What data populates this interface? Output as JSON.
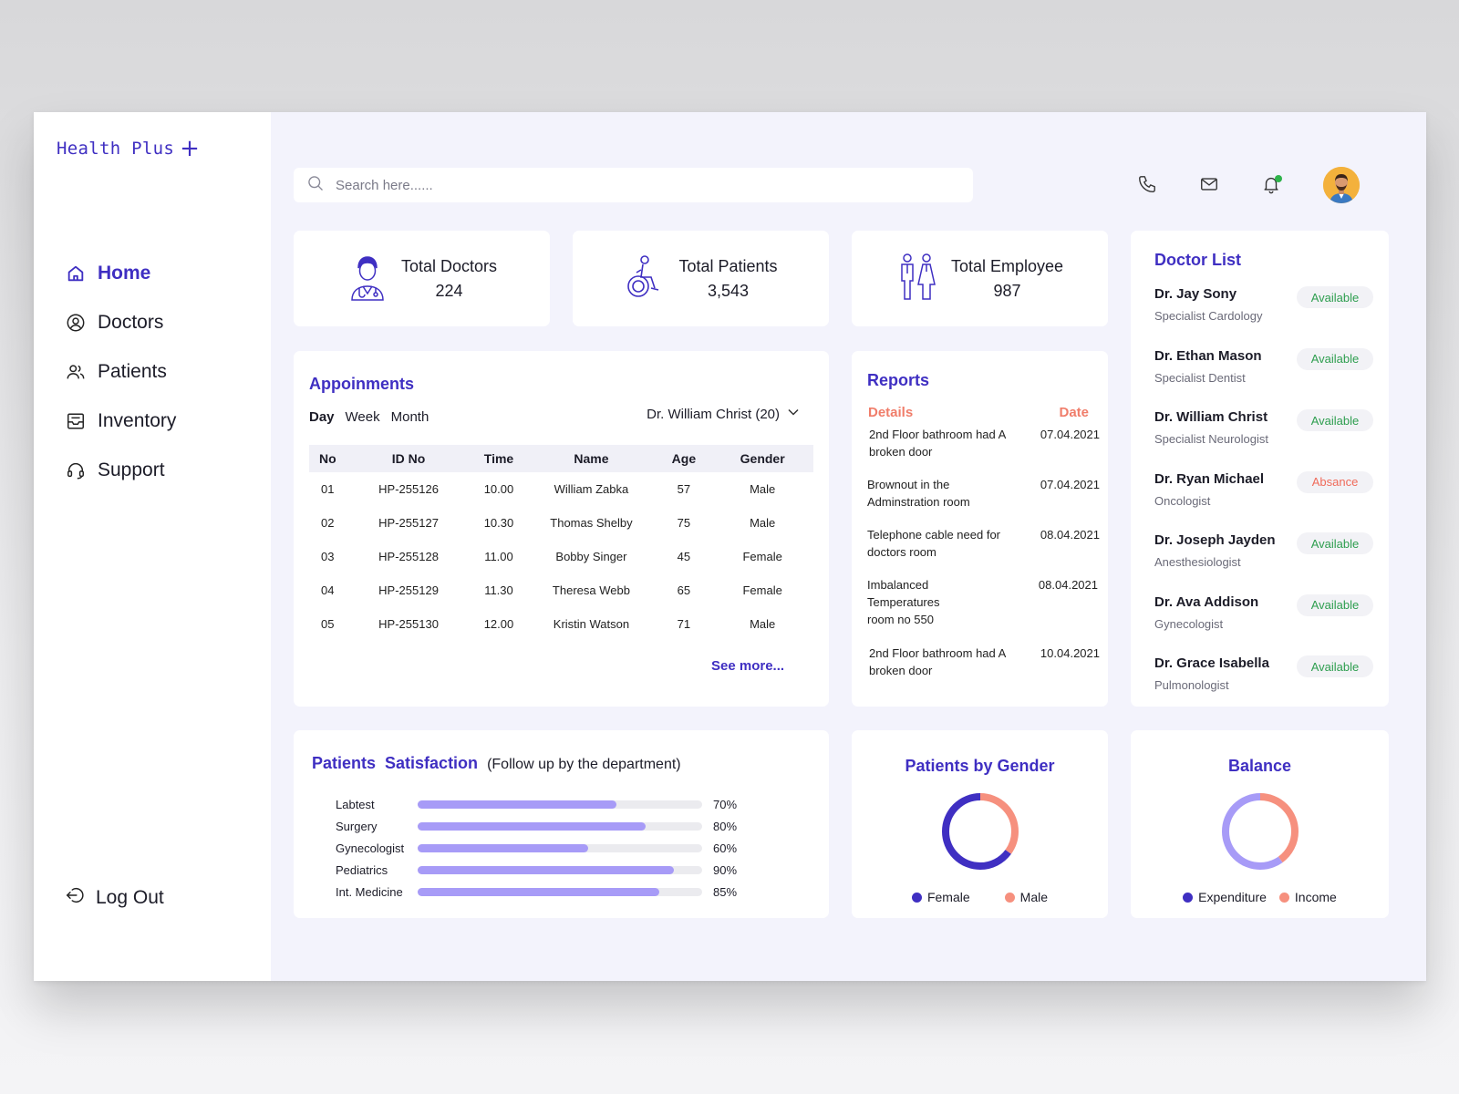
{
  "brand": {
    "name": "Health Plus",
    "plus": "+"
  },
  "sidebar": {
    "items": [
      {
        "label": "Home",
        "icon": "home-icon"
      },
      {
        "label": "Doctors",
        "icon": "user-circle-icon"
      },
      {
        "label": "Patients",
        "icon": "users-icon"
      },
      {
        "label": "Inventory",
        "icon": "inventory-icon"
      },
      {
        "label": "Support",
        "icon": "headset-icon"
      }
    ],
    "logout": "Log Out"
  },
  "search": {
    "placeholder": "Search here......"
  },
  "stats": {
    "doctors": {
      "title": "Total Doctors",
      "value": "224"
    },
    "patients": {
      "title": "Total Patients",
      "value": "3,543"
    },
    "employees": {
      "title": "Total Employee",
      "value": "987"
    }
  },
  "appointments": {
    "title": "Appoinments",
    "tabs": [
      "Day",
      "Week",
      "Month"
    ],
    "selected_doctor": "Dr. William Christ (20)",
    "columns": [
      "No",
      "ID No",
      "Time",
      "Name",
      "Age",
      "Gender"
    ],
    "rows": [
      [
        "01",
        "HP-255126",
        "10.00",
        "William Zabka",
        "57",
        "Male"
      ],
      [
        "02",
        "HP-255127",
        "10.30",
        "Thomas Shelby",
        "75",
        "Male"
      ],
      [
        "03",
        "HP-255128",
        "11.00",
        "Bobby Singer",
        "45",
        "Female"
      ],
      [
        "04",
        "HP-255129",
        "11.30",
        "Theresa Webb",
        "65",
        "Female"
      ],
      [
        "05",
        "HP-255130",
        "12.00",
        "Kristin Watson",
        "71",
        "Male"
      ]
    ],
    "see_more": "See more..."
  },
  "reports": {
    "title": "Reports",
    "details_header": "Details",
    "date_header": "Date",
    "rows": [
      {
        "details": "2nd Floor bathroom had A broken door",
        "date": "07.04.2021"
      },
      {
        "details": "Brownout in the Adminstration room",
        "date": "07.04.2021"
      },
      {
        "details": "Telephone cable need for doctors room",
        "date": "08.04.2021"
      },
      {
        "details": "Imbalanced Temperatures room no 550",
        "date": "08.04.2021"
      },
      {
        "details": "2nd Floor bathroom had A broken door",
        "date": "10.04.2021"
      }
    ]
  },
  "doctor_list": {
    "title": "Doctor List",
    "doctors": [
      {
        "name": "Dr. Jay Sony",
        "specialty": "Specialist Cardology",
        "status": "Available"
      },
      {
        "name": "Dr. Ethan Mason",
        "specialty": "Specialist Dentist",
        "status": "Available"
      },
      {
        "name": "Dr. William Christ",
        "specialty": "Specialist Neurologist",
        "status": "Available"
      },
      {
        "name": "Dr. Ryan Michael",
        "specialty": "Oncologist",
        "status": "Absance"
      },
      {
        "name": "Dr. Joseph Jayden",
        "specialty": "Anesthesiologist",
        "status": "Available"
      },
      {
        "name": "Dr. Ava Addison",
        "specialty": "Gynecologist",
        "status": "Available"
      },
      {
        "name": "Dr. Grace Isabella",
        "specialty": "Pulmonologist",
        "status": "Available"
      }
    ],
    "status_colors": {
      "Available": "#2e9e4f",
      "Absance": "#f06b5a"
    }
  },
  "satisfaction": {
    "title": "Patients  Satisfaction",
    "subtitle": "(Follow up by the department)",
    "items": [
      {
        "label": "Labtest",
        "value": 70,
        "pct": "70%"
      },
      {
        "label": "Surgery",
        "value": 80,
        "pct": "80%"
      },
      {
        "label": "Gynecologist",
        "value": 60,
        "pct": "60%"
      },
      {
        "label": "Pediatrics",
        "value": 90,
        "pct": "90%"
      },
      {
        "label": "Int. Medicine",
        "value": 85,
        "pct": "85%"
      }
    ],
    "bar_color": "#a79bf7"
  },
  "gender": {
    "title": "Patients by Gender",
    "legend": [
      {
        "label": "Female",
        "color": "#3f2fc2",
        "value": 65
      },
      {
        "label": "Male",
        "color": "#f6907e",
        "value": 35
      }
    ]
  },
  "balance": {
    "title": "Balance",
    "legend": [
      {
        "label": "Expenditure",
        "color": "#a79bf7",
        "value": 60
      },
      {
        "label": "Income",
        "color": "#f6907e",
        "value": 40
      }
    ]
  },
  "colors": {
    "accent": "#3f2fc2",
    "background": "#f3f3fc",
    "coral": "#f6907e",
    "lavender": "#a79bf7"
  }
}
